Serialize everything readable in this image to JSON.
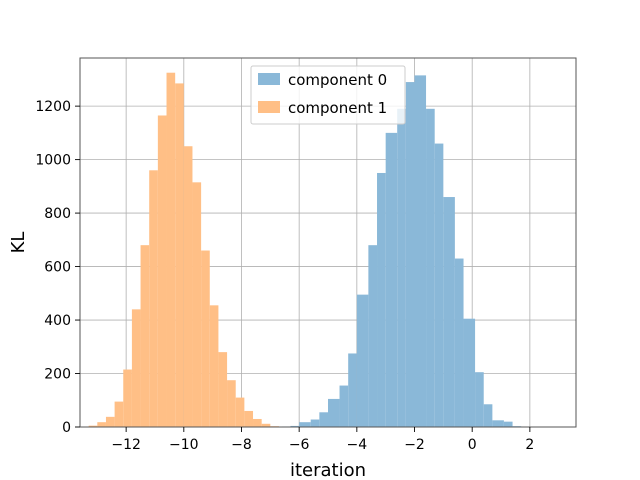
{
  "chart_data": {
    "type": "bar",
    "title": "",
    "xlabel": "iteration",
    "ylabel": "KL",
    "xlim": [
      -13.6,
      3.6
    ],
    "ylim": [
      0,
      1380
    ],
    "grid": true,
    "legend_position": "top-center",
    "x_ticks": [
      -12,
      -10,
      -8,
      -6,
      -4,
      -2,
      0,
      2
    ],
    "x_tick_labels": [
      "−12",
      "−10",
      "−8",
      "−6",
      "−4",
      "−2",
      "0",
      "2"
    ],
    "y_ticks": [
      0,
      200,
      400,
      600,
      800,
      1000,
      1200
    ],
    "y_tick_labels": [
      "0",
      "200",
      "400",
      "600",
      "800",
      "1000",
      "1200"
    ],
    "series": [
      {
        "name": "component 0",
        "color": "#8ab8d8",
        "bins": [
          {
            "x0": -6.6,
            "x1": -6.3,
            "count": 2
          },
          {
            "x0": -6.3,
            "x1": -6.0,
            "count": 4
          },
          {
            "x0": -6.0,
            "x1": -5.6,
            "count": 18
          },
          {
            "x0": -5.6,
            "x1": -5.3,
            "count": 28
          },
          {
            "x0": -5.3,
            "x1": -5.0,
            "count": 55
          },
          {
            "x0": -5.0,
            "x1": -4.6,
            "count": 105
          },
          {
            "x0": -4.6,
            "x1": -4.3,
            "count": 155
          },
          {
            "x0": -4.3,
            "x1": -4.0,
            "count": 275
          },
          {
            "x0": -4.0,
            "x1": -3.6,
            "count": 495
          },
          {
            "x0": -3.6,
            "x1": -3.3,
            "count": 680
          },
          {
            "x0": -3.3,
            "x1": -3.0,
            "count": 950
          },
          {
            "x0": -3.0,
            "x1": -2.6,
            "count": 1100
          },
          {
            "x0": -2.6,
            "x1": -2.3,
            "count": 1190
          },
          {
            "x0": -2.3,
            "x1": -2.0,
            "count": 1290
          },
          {
            "x0": -2.0,
            "x1": -1.6,
            "count": 1315
          },
          {
            "x0": -1.6,
            "x1": -1.3,
            "count": 1190
          },
          {
            "x0": -1.3,
            "x1": -1.0,
            "count": 1060
          },
          {
            "x0": -1.0,
            "x1": -0.6,
            "count": 860
          },
          {
            "x0": -0.6,
            "x1": -0.3,
            "count": 630
          },
          {
            "x0": -0.3,
            "x1": 0.1,
            "count": 405
          },
          {
            "x0": 0.1,
            "x1": 0.4,
            "count": 205
          },
          {
            "x0": 0.4,
            "x1": 0.7,
            "count": 85
          },
          {
            "x0": 0.7,
            "x1": 1.1,
            "count": 25
          },
          {
            "x0": 1.1,
            "x1": 1.4,
            "count": 20
          },
          {
            "x0": 1.4,
            "x1": 1.7,
            "count": 3
          },
          {
            "x0": 1.7,
            "x1": 2.1,
            "count": 1
          },
          {
            "x0": 2.1,
            "x1": 2.4,
            "count": 1
          },
          {
            "x0": 2.4,
            "x1": 2.7,
            "count": 1
          },
          {
            "x0": 2.7,
            "x1": 3.1,
            "count": 1
          }
        ]
      },
      {
        "name": "component 1",
        "color": "#ffbf86",
        "bins": [
          {
            "x0": -13.3,
            "x1": -13.0,
            "count": 5
          },
          {
            "x0": -13.0,
            "x1": -12.7,
            "count": 18
          },
          {
            "x0": -12.7,
            "x1": -12.4,
            "count": 38
          },
          {
            "x0": -12.4,
            "x1": -12.1,
            "count": 95
          },
          {
            "x0": -12.1,
            "x1": -11.8,
            "count": 215
          },
          {
            "x0": -11.8,
            "x1": -11.5,
            "count": 440
          },
          {
            "x0": -11.5,
            "x1": -11.2,
            "count": 680
          },
          {
            "x0": -11.2,
            "x1": -10.9,
            "count": 960
          },
          {
            "x0": -10.9,
            "x1": -10.6,
            "count": 1165
          },
          {
            "x0": -10.6,
            "x1": -10.3,
            "count": 1325
          },
          {
            "x0": -10.3,
            "x1": -10.0,
            "count": 1285
          },
          {
            "x0": -10.0,
            "x1": -9.7,
            "count": 1050
          },
          {
            "x0": -9.7,
            "x1": -9.4,
            "count": 915
          },
          {
            "x0": -9.4,
            "x1": -9.1,
            "count": 660
          },
          {
            "x0": -9.1,
            "x1": -8.8,
            "count": 455
          },
          {
            "x0": -8.8,
            "x1": -8.5,
            "count": 280
          },
          {
            "x0": -8.5,
            "x1": -8.2,
            "count": 175
          },
          {
            "x0": -8.2,
            "x1": -7.9,
            "count": 110
          },
          {
            "x0": -7.9,
            "x1": -7.6,
            "count": 60
          },
          {
            "x0": -7.6,
            "x1": -7.3,
            "count": 30
          },
          {
            "x0": -7.3,
            "x1": -7.0,
            "count": 12
          },
          {
            "x0": -7.0,
            "x1": -6.7,
            "count": 3
          },
          {
            "x0": -6.7,
            "x1": -6.4,
            "count": 1
          }
        ]
      }
    ]
  }
}
